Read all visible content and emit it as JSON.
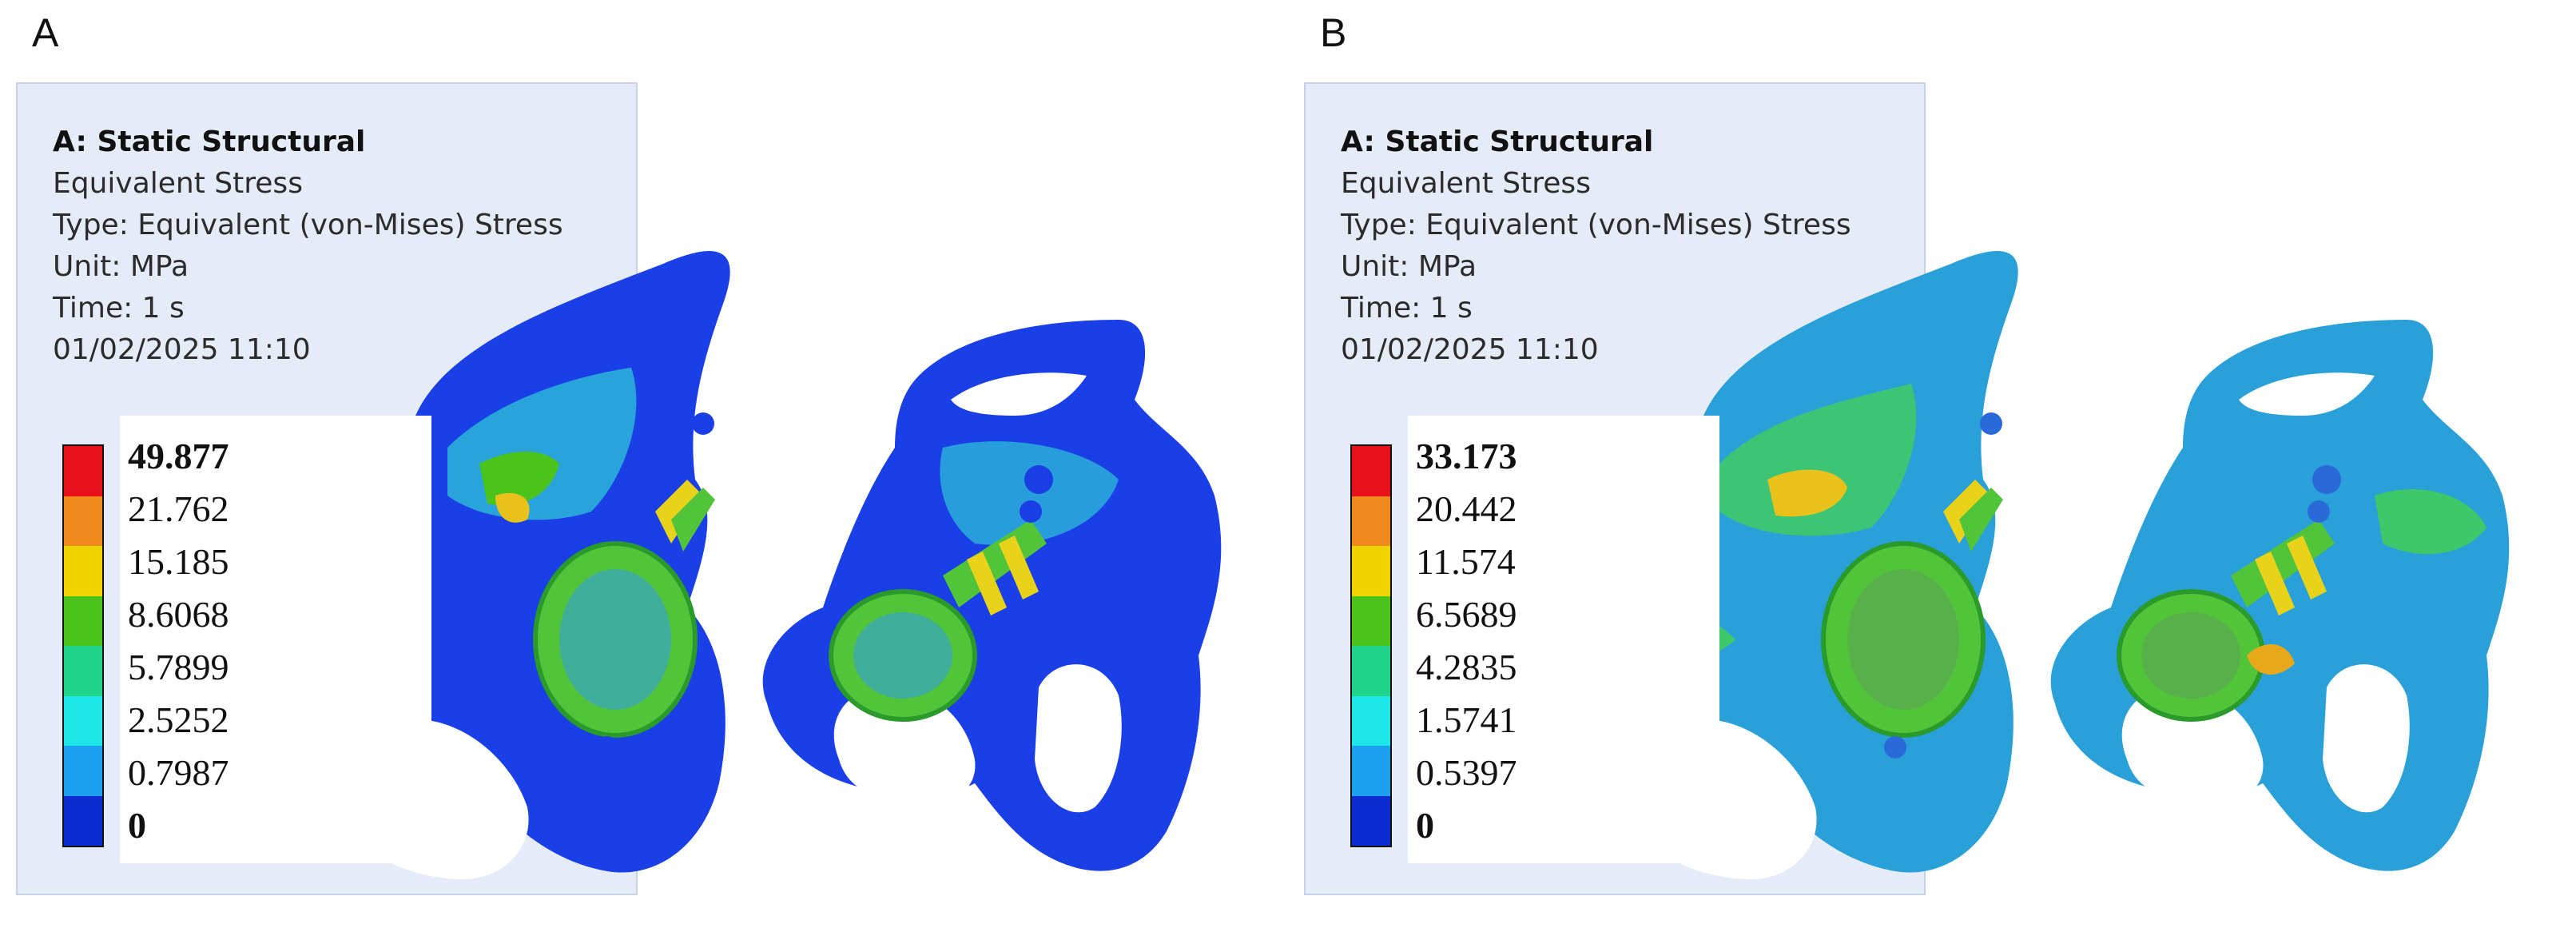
{
  "panels": [
    {
      "letter": "A",
      "info": {
        "title": "A: Static Structural",
        "result": "Equivalent Stress",
        "type": "Type: Equivalent (von-Mises) Stress",
        "unit": "Unit: MPa",
        "time": "Time: 1 s",
        "timestamp": "01/02/2025 11:10"
      },
      "legend_values": [
        "49.877",
        "21.762",
        "15.185",
        "8.6068",
        "5.7899",
        "2.5252",
        "0.7987",
        "0"
      ]
    },
    {
      "letter": "B",
      "info": {
        "title": "A: Static Structural",
        "result": "Equivalent Stress",
        "type": "Type: Equivalent (von-Mises) Stress",
        "unit": "Unit: MPa",
        "time": "Time: 1 s",
        "timestamp": "01/02/2025 11:10"
      },
      "legend_values": [
        "33.173",
        "20.442",
        "11.574",
        "6.5689",
        "4.2835",
        "1.5741",
        "0.5397",
        "0"
      ]
    }
  ],
  "colorbar_colors": [
    "#e8101a",
    "#f08a1c",
    "#f0d400",
    "#4cc31a",
    "#1fd38a",
    "#1ce6e6",
    "#1aa0ee",
    "#0a2cd2"
  ],
  "model_colors": {
    "panel_a_base": "#1a3fe6",
    "panel_a_mid": "#2bb6d8",
    "panel_b_base": "#2aa0d8",
    "panel_b_mid": "#3fc86a",
    "hotspot": "#e8c21a",
    "implant": "#52c43a"
  }
}
